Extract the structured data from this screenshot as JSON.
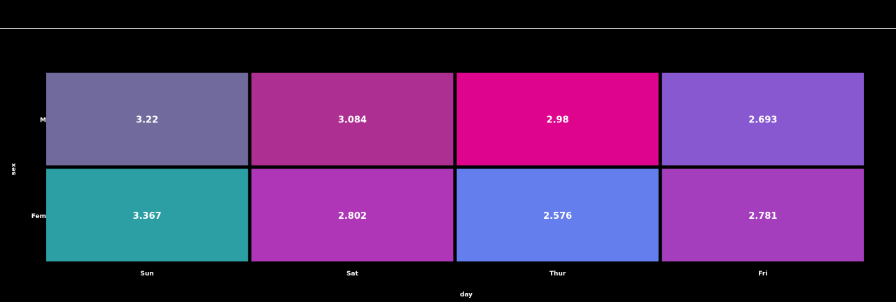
{
  "chart_data": {
    "type": "heatmap",
    "title": "",
    "xlabel": "day",
    "ylabel": "sex",
    "x": [
      "Sun",
      "Sat",
      "Thur",
      "Fri"
    ],
    "y": [
      "M",
      "Fem"
    ],
    "y_full": [
      "Male",
      "Female"
    ],
    "values": [
      [
        3.22,
        3.084,
        2.98,
        2.693
      ],
      [
        3.367,
        2.802,
        2.576,
        2.781
      ]
    ],
    "cell_labels": [
      [
        "3.22",
        "3.084",
        "2.98",
        "2.693"
      ],
      [
        "3.367",
        "2.802",
        "2.576",
        "2.781"
      ]
    ],
    "colors": [
      [
        "#716a9c",
        "#ae2f92",
        "#de048e",
        "#8858d1"
      ],
      [
        "#2b9fa3",
        "#ae36b7",
        "#657eee",
        "#a43ebd"
      ]
    ],
    "grid": false,
    "legend": "none"
  }
}
